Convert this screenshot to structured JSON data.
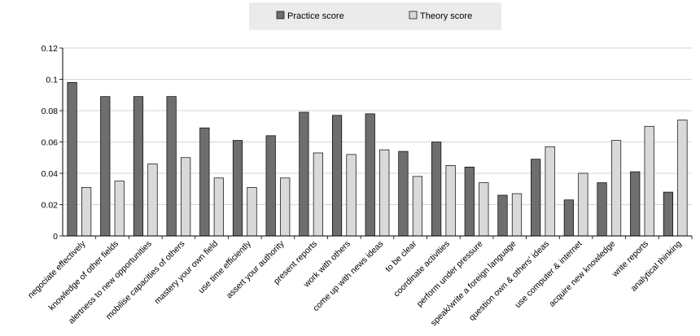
{
  "chart_data": {
    "type": "bar",
    "categories": [
      "negociate effectively",
      "knowledge of other fields",
      "alertness to new opportunities",
      "mobilise capacities of others",
      "mastery your own field",
      "use time efficiently",
      "assert your authority",
      "present reports",
      "work with others",
      "come up with news ideas",
      "to be clear",
      "coordinate activities",
      "perform under pressure",
      "speak/write a foreign language",
      "question own & others' ideas",
      "use computer & internet",
      "acquire new knowledge",
      "write reports",
      "analytical thinking"
    ],
    "series": [
      {
        "name": "Practice score",
        "color": "#6e6e6e",
        "values": [
          0.098,
          0.089,
          0.089,
          0.089,
          0.069,
          0.061,
          0.064,
          0.079,
          0.077,
          0.078,
          0.054,
          0.06,
          0.044,
          0.026,
          0.049,
          0.023,
          0.034,
          0.041,
          0.028
        ]
      },
      {
        "name": "Theory score",
        "color": "#d9d9d9",
        "values": [
          0.031,
          0.035,
          0.046,
          0.05,
          0.037,
          0.031,
          0.037,
          0.053,
          0.052,
          0.055,
          0.038,
          0.045,
          0.034,
          0.027,
          0.057,
          0.04,
          0.061,
          0.07,
          0.074
        ]
      }
    ],
    "title": "",
    "xlabel": "",
    "ylabel": "",
    "ylim": [
      0,
      0.12
    ],
    "yticks": [
      "0",
      "0.02",
      "0.04",
      "0.06",
      "0.08",
      "0.1",
      "0.12"
    ],
    "grid": true,
    "legend_position": "top-center"
  }
}
